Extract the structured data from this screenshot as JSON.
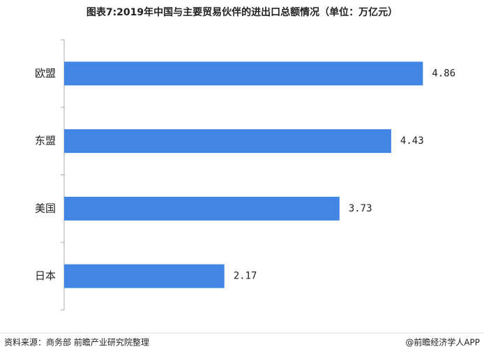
{
  "chart_data": {
    "type": "barh",
    "title": "图表7:2019年中国与主要贸易伙伴的进出口总额情况（单位：万亿元）",
    "categories": [
      "欧盟",
      "东盟",
      "美国",
      "日本"
    ],
    "values": [
      4.86,
      4.43,
      3.73,
      2.17
    ],
    "color": "#4186e4",
    "xlim": [
      0,
      5.3
    ]
  },
  "footer": {
    "source": "资料来源：商务部 前瞻产业研究院整理",
    "credit": "@前瞻经济学人APP"
  }
}
